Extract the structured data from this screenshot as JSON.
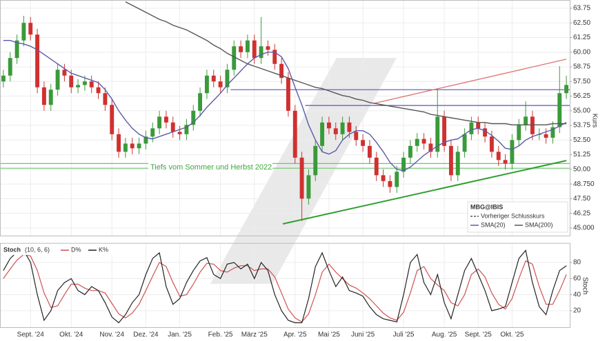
{
  "chart_data": [
    {
      "type": "candlestick",
      "up_color": "#3a9a3a",
      "down_color": "#d03030",
      "open": [
        57.5,
        58.0,
        59.5,
        61.0,
        62.5,
        61.5,
        57.0,
        55.5,
        56.8,
        58.5,
        58.0,
        57.0,
        57.2,
        57.5,
        57.0,
        56.5,
        55.5,
        53.0,
        51.5,
        52.2,
        51.8,
        52.2,
        52.8,
        53.5,
        54.5,
        54.0,
        53.2,
        53.0,
        53.8,
        55.0,
        56.5,
        58.0,
        57.5,
        57.0,
        58.5,
        60.5,
        60.0,
        61.0,
        59.5,
        60.5,
        60.2,
        59.0,
        57.8,
        55.0,
        51.0,
        47.5,
        49.5,
        52.0,
        54.0,
        53.5,
        53.0,
        54.0,
        53.2,
        52.5,
        52.0,
        51.0,
        49.5,
        49.0,
        48.5,
        49.8,
        51.0,
        52.0,
        52.6,
        52.2,
        51.5,
        54.5,
        52.0,
        49.5,
        51.5,
        53.0,
        54.0,
        53.5,
        52.8,
        51.5,
        50.8,
        50.5,
        52.5,
        53.8,
        54.5,
        53.0,
        53.0,
        52.7,
        53.6,
        56.5
      ],
      "high": [
        58.5,
        60.0,
        61.5,
        63.1,
        63.0,
        62.0,
        57.5,
        57.3,
        59.0,
        59.0,
        58.5,
        57.7,
        58.0,
        58.0,
        57.5,
        57.0,
        56.0,
        53.5,
        52.7,
        52.7,
        52.7,
        53.3,
        54.0,
        55.0,
        55.0,
        54.5,
        53.7,
        54.3,
        55.5,
        57.0,
        58.5,
        58.5,
        58.0,
        59.0,
        61.0,
        61.0,
        61.5,
        61.5,
        63.0,
        61.0,
        60.7,
        59.5,
        58.3,
        55.5,
        51.5,
        50.0,
        52.5,
        54.5,
        54.5,
        54.0,
        54.5,
        54.5,
        53.7,
        53.0,
        52.5,
        51.5,
        50.0,
        49.5,
        50.3,
        51.5,
        52.5,
        53.1,
        53.1,
        52.7,
        56.8,
        55.0,
        52.5,
        52.0,
        53.5,
        54.5,
        54.5,
        54.0,
        53.3,
        52.0,
        51.3,
        53.0,
        54.3,
        55.8,
        55.0,
        53.5,
        53.5,
        54.1,
        58.8,
        58.0
      ],
      "low": [
        57.0,
        57.5,
        59.0,
        60.5,
        61.0,
        56.5,
        55.0,
        55.0,
        56.3,
        57.5,
        56.5,
        56.5,
        56.7,
        56.5,
        56.0,
        55.0,
        52.5,
        51.0,
        51.0,
        51.3,
        51.3,
        51.7,
        52.3,
        53.0,
        53.5,
        52.7,
        52.5,
        52.5,
        53.3,
        54.5,
        56.0,
        57.0,
        56.5,
        56.5,
        58.0,
        59.5,
        59.5,
        59.0,
        59.0,
        59.7,
        58.5,
        57.3,
        54.5,
        50.5,
        45.6,
        47.0,
        49.0,
        51.5,
        53.0,
        52.5,
        52.5,
        52.7,
        52.0,
        51.5,
        50.5,
        49.0,
        48.5,
        48.0,
        48.0,
        49.3,
        50.5,
        51.5,
        51.7,
        51.0,
        51.0,
        51.5,
        49.0,
        49.0,
        51.0,
        52.5,
        53.0,
        52.3,
        51.0,
        50.3,
        50.0,
        50.0,
        52.0,
        53.3,
        52.5,
        52.5,
        52.2,
        52.2,
        53.1,
        56.0
      ],
      "close": [
        58.0,
        59.5,
        61.0,
        62.5,
        61.5,
        57.0,
        55.5,
        56.8,
        58.5,
        58.0,
        57.0,
        57.2,
        57.5,
        57.0,
        56.5,
        55.5,
        53.0,
        51.5,
        52.2,
        51.8,
        52.2,
        52.8,
        53.5,
        54.5,
        54.0,
        53.2,
        53.0,
        53.8,
        55.0,
        56.5,
        58.0,
        57.5,
        57.0,
        58.5,
        60.5,
        60.0,
        61.0,
        59.5,
        60.5,
        60.2,
        59.0,
        57.8,
        55.0,
        51.0,
        47.5,
        49.5,
        52.0,
        54.0,
        53.5,
        53.0,
        54.0,
        53.2,
        52.5,
        52.0,
        51.0,
        49.5,
        49.0,
        48.5,
        49.8,
        51.0,
        52.0,
        52.6,
        52.2,
        51.5,
        54.5,
        52.0,
        49.5,
        51.5,
        53.0,
        54.0,
        53.5,
        52.8,
        51.5,
        50.8,
        50.5,
        52.5,
        53.8,
        54.5,
        53.0,
        53.0,
        52.7,
        53.6,
        56.5,
        57.2
      ],
      "series": [
        {
          "name": "SMA(20)",
          "color": "#5a5aa8",
          "values": [
            61.0,
            61.0,
            60.8,
            60.7,
            60.5,
            60.2,
            59.8,
            59.4,
            59.0,
            58.6,
            58.2,
            58.0,
            57.8,
            57.6,
            57.4,
            56.8,
            56.0,
            55.0,
            54.2,
            53.5,
            53.0,
            52.7,
            52.6,
            52.8,
            53.0,
            53.2,
            53.4,
            53.6,
            54.0,
            54.6,
            55.3,
            55.9,
            56.5,
            57.2,
            57.8,
            58.4,
            59.0,
            59.5,
            59.8,
            60.0,
            60.0,
            59.6,
            58.6,
            57.0,
            55.5,
            53.8,
            52.5,
            51.5,
            51.3,
            51.6,
            52.5,
            53.0,
            53.3,
            53.3,
            53.0,
            52.3,
            51.5,
            50.6,
            50.0,
            49.9,
            50.2,
            50.7,
            51.2,
            51.6,
            52.0,
            52.3,
            52.5,
            52.6,
            53.0,
            53.4,
            53.5,
            53.3,
            52.9,
            52.4,
            51.8,
            51.7,
            52.0,
            52.5,
            52.8,
            53.0,
            53.2,
            53.4,
            53.7,
            54.0
          ]
        },
        {
          "name": "SMA(200)",
          "color": "#555555",
          "values": [
            null,
            null,
            null,
            null,
            null,
            null,
            null,
            null,
            null,
            null,
            null,
            null,
            null,
            null,
            null,
            null,
            null,
            null,
            64.3,
            64.0,
            63.7,
            63.4,
            63.1,
            62.8,
            62.6,
            62.3,
            62.1,
            61.9,
            61.6,
            61.3,
            61.0,
            60.6,
            60.3,
            59.9,
            59.6,
            59.3,
            59.0,
            58.8,
            58.6,
            58.4,
            58.2,
            58.0,
            57.8,
            57.6,
            57.4,
            57.2,
            57.0,
            56.9,
            56.7,
            56.5,
            56.3,
            56.2,
            56.0,
            55.9,
            55.7,
            55.6,
            55.5,
            55.4,
            55.3,
            55.2,
            55.1,
            55.0,
            54.9,
            54.7,
            54.6,
            54.5,
            54.4,
            54.3,
            54.2,
            54.1,
            54.0,
            54.0,
            53.9,
            53.9,
            53.9,
            53.8,
            53.8,
            53.8,
            53.8,
            53.8,
            53.8,
            53.9,
            53.9,
            53.9
          ]
        }
      ],
      "horizontal_lines": [
        {
          "value": 56.8,
          "start": 34,
          "color": "#5555bb"
        },
        {
          "value": 55.45,
          "start": 45,
          "color": "#5555bb"
        },
        {
          "value": 50.5,
          "start": 0,
          "color": "#6cc46c"
        },
        {
          "value": 50.1,
          "start": 0,
          "color": "#6cc46c"
        }
      ],
      "trend_lines": [
        {
          "x": [
            41.7,
            83.5
          ],
          "values": [
            45.35,
            50.75
          ],
          "color": "#2e9e2e"
        },
        {
          "x": [
            55.2,
            83.5
          ],
          "values": [
            55.64,
            59.4
          ],
          "color": "#e07070"
        }
      ],
      "annotation": "Tiefs vom Sommer und Herbst 2022",
      "legend_title": "MBG@IBIS",
      "previous_close_label": "Vorheriger Schlusskurs",
      "legend": "bottom-right",
      "y_label": "Kurs",
      "ylim": [
        44.35,
        64.45
      ],
      "yticks": [
        {
          "value": 45,
          "label": "45.000"
        },
        46.25,
        {
          "value": 47.5,
          "label": "47.50"
        },
        {
          "value": 48.75,
          "label": "48.750"
        },
        {
          "value": 50,
          "label": "50.00"
        },
        51.25,
        {
          "value": 52.5,
          "label": "52.50"
        },
        53.75,
        {
          "value": 55,
          "label": "55.00"
        },
        56.25,
        {
          "value": 57.5,
          "label": "57.50"
        },
        58.75,
        {
          "value": 60,
          "label": "60.00"
        },
        61.25,
        {
          "value": 62.5,
          "label": "62.50"
        },
        63.75
      ],
      "grid": true
    },
    {
      "type": "line",
      "title": "Stoch",
      "parameters": "(10, 6, 6)",
      "y_label": "Stoch",
      "categories": [
        null,
        null,
        null,
        null,
        "Sept. '24",
        null,
        null,
        null,
        null,
        null,
        "Okt. '24",
        null,
        null,
        null,
        null,
        null,
        "Nov. '24",
        null,
        null,
        null,
        null,
        "Dez. '24",
        null,
        null,
        null,
        null,
        "Jan. '25",
        null,
        null,
        null,
        null,
        null,
        "Feb. '25",
        null,
        null,
        null,
        null,
        "März '25",
        null,
        null,
        null,
        null,
        null,
        "Apr. '25",
        null,
        null,
        null,
        null,
        "Mai '25",
        null,
        null,
        null,
        null,
        "Juni '25",
        null,
        null,
        null,
        null,
        null,
        "Juli '25",
        null,
        null,
        null,
        null,
        null,
        "Aug. '25",
        null,
        null,
        null,
        null,
        "Sept. '25",
        null,
        null,
        null,
        null,
        "Okt. '25",
        null,
        null,
        null,
        null,
        null,
        null,
        null,
        null
      ],
      "series": [
        {
          "name": "D%",
          "color": "#d05050",
          "values": [
            60,
            72,
            83,
            90,
            88,
            70,
            42,
            24,
            26,
            40,
            53,
            53,
            48,
            45,
            45,
            42,
            29,
            16,
            11,
            17,
            28,
            45,
            63,
            80,
            75,
            55,
            38,
            40,
            53,
            68,
            79,
            78,
            70,
            68,
            73,
            76,
            76,
            70,
            72,
            72,
            62,
            42,
            22,
            11,
            6,
            16,
            40,
            68,
            78,
            68,
            60,
            52,
            48,
            42,
            35,
            26,
            17,
            11,
            8,
            18,
            42,
            70,
            75,
            60,
            52,
            45,
            30,
            26,
            40,
            65,
            72,
            62,
            42,
            28,
            22,
            35,
            60,
            82,
            78,
            50,
            28,
            28,
            45,
            65
          ]
        },
        {
          "name": "K%",
          "color": "#222222",
          "values": [
            70,
            85,
            93,
            95,
            80,
            40,
            8,
            20,
            45,
            55,
            60,
            45,
            40,
            50,
            45,
            30,
            12,
            5,
            15,
            30,
            40,
            65,
            85,
            92,
            50,
            28,
            35,
            55,
            70,
            82,
            86,
            65,
            60,
            78,
            80,
            72,
            78,
            60,
            80,
            70,
            40,
            20,
            8,
            5,
            5,
            35,
            75,
            92,
            70,
            50,
            62,
            45,
            42,
            38,
            25,
            15,
            10,
            8,
            6,
            40,
            80,
            90,
            55,
            40,
            65,
            30,
            10,
            40,
            70,
            85,
            65,
            45,
            20,
            22,
            25,
            55,
            85,
            95,
            55,
            25,
            15,
            45,
            70,
            76
          ]
        }
      ],
      "ylim": [
        -1,
        103
      ],
      "yticks": [
        20,
        40,
        60,
        80
      ],
      "grid": true
    }
  ]
}
